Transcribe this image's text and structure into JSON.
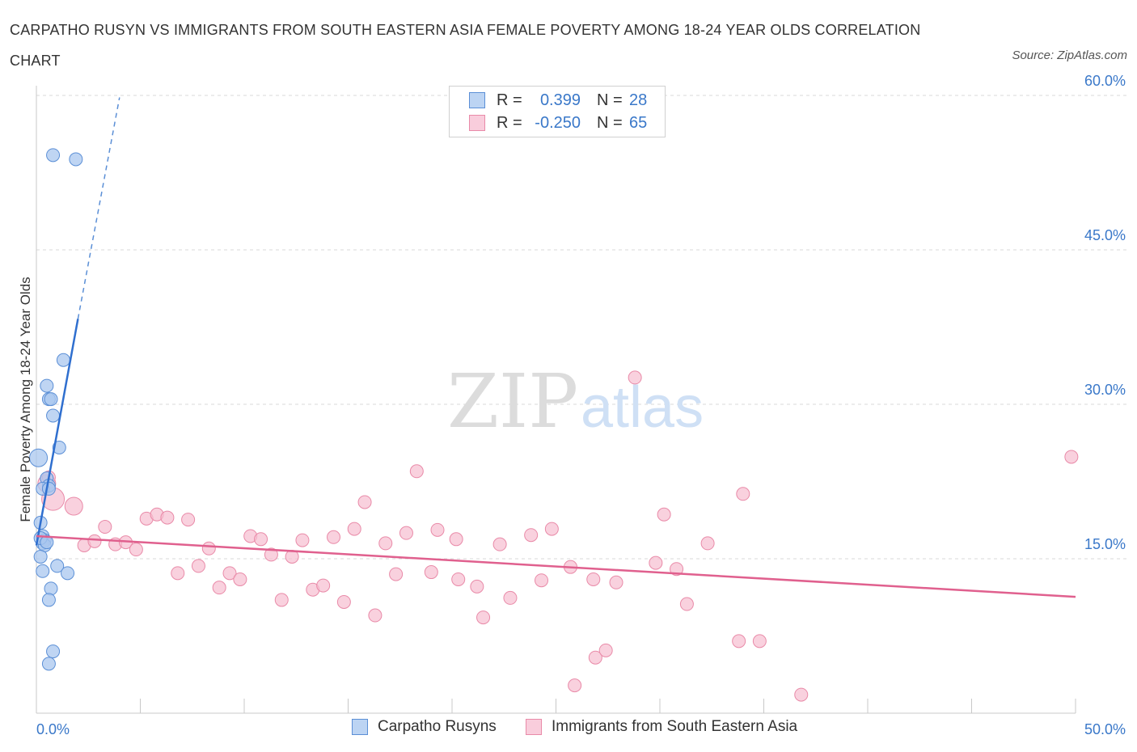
{
  "header": {
    "title": "CARPATHO RUSYN VS IMMIGRANTS FROM SOUTH EASTERN ASIA FEMALE POVERTY AMONG 18-24 YEAR OLDS CORRELATION CHART",
    "source": "Source: ZipAtlas.com"
  },
  "watermark": {
    "zip": "ZIP",
    "atlas": "atlas"
  },
  "legend": {
    "rows": [
      {
        "r_label": "R =",
        "r_value": "0.399",
        "n_label": "N =",
        "n_value": "28"
      },
      {
        "r_label": "R =",
        "r_value": "-0.250",
        "n_label": "N =",
        "n_value": "65"
      }
    ]
  },
  "bottom_legend": {
    "series1": "Carpatho Rusyns",
    "series2": "Immigrants from South Eastern Asia"
  },
  "colors": {
    "blue_fill": "#a9c7ef",
    "blue_stroke": "#5b8fd6",
    "blue_line": "#2f6fcf",
    "pink_fill": "#f6bdd0",
    "pink_stroke": "#e98aa8",
    "pink_line": "#e0608e",
    "axis_text": "#3a78c9",
    "grid": "#d9d9d9"
  },
  "chart_data": {
    "type": "scatter",
    "title": "CARPATHO RUSYN VS IMMIGRANTS FROM SOUTH EASTERN ASIA FEMALE POVERTY AMONG 18-24 YEAR OLDS CORRELATION CHART",
    "xlabel": "",
    "ylabel": "Female Poverty Among 18-24 Year Olds",
    "xlim": [
      0,
      50
    ],
    "ylim": [
      0,
      60
    ],
    "x_tick_labels": [
      "0.0%",
      "50.0%"
    ],
    "y_ticks": [
      15,
      30,
      45,
      60
    ],
    "y_tick_labels": [
      "15.0%",
      "30.0%",
      "45.0%",
      "60.0%"
    ],
    "grid": true,
    "legend_position": "top-center",
    "series": [
      {
        "name": "Carpatho Rusyns",
        "r": 0.399,
        "n": 28,
        "points": [
          [
            0.8,
            54.2
          ],
          [
            1.9,
            53.8
          ],
          [
            1.3,
            34.3
          ],
          [
            0.5,
            31.8
          ],
          [
            0.6,
            30.5
          ],
          [
            0.7,
            30.5
          ],
          [
            0.8,
            28.9
          ],
          [
            1.1,
            25.8
          ],
          [
            0.1,
            24.8
          ],
          [
            0.5,
            22.8
          ],
          [
            0.6,
            22.1
          ],
          [
            0.3,
            21.8
          ],
          [
            0.6,
            21.8
          ],
          [
            0.2,
            18.5
          ],
          [
            0.3,
            17.2
          ],
          [
            0.4,
            16.8
          ],
          [
            0.3,
            16.5
          ],
          [
            0.4,
            16.3
          ],
          [
            0.2,
            15.2
          ],
          [
            0.3,
            13.8
          ],
          [
            1.0,
            14.3
          ],
          [
            1.5,
            13.6
          ],
          [
            0.7,
            12.1
          ],
          [
            0.6,
            11.0
          ],
          [
            0.8,
            6.0
          ],
          [
            0.6,
            4.8
          ],
          [
            0.2,
            17.0
          ],
          [
            0.5,
            16.6
          ]
        ],
        "trend": {
          "x": [
            0,
            2.0
          ],
          "y": [
            16.3,
            38.3
          ],
          "dashed_to": [
            4.0,
            59.8
          ]
        }
      },
      {
        "name": "Immigrants from South Eastern Asia",
        "r": -0.25,
        "n": 65,
        "points": [
          [
            0.5,
            22.3
          ],
          [
            0.8,
            20.8
          ],
          [
            1.8,
            20.1
          ],
          [
            0.6,
            22.9
          ],
          [
            3.3,
            18.1
          ],
          [
            2.3,
            16.3
          ],
          [
            2.8,
            16.7
          ],
          [
            3.8,
            16.4
          ],
          [
            4.3,
            16.6
          ],
          [
            4.8,
            15.9
          ],
          [
            5.3,
            18.9
          ],
          [
            5.8,
            19.3
          ],
          [
            6.3,
            19.0
          ],
          [
            7.3,
            18.8
          ],
          [
            6.8,
            13.6
          ],
          [
            7.8,
            14.3
          ],
          [
            8.3,
            16.0
          ],
          [
            8.8,
            12.2
          ],
          [
            9.3,
            13.6
          ],
          [
            9.8,
            13.0
          ],
          [
            10.3,
            17.2
          ],
          [
            10.8,
            16.9
          ],
          [
            11.3,
            15.4
          ],
          [
            11.8,
            11.0
          ],
          [
            12.3,
            15.2
          ],
          [
            12.8,
            16.8
          ],
          [
            13.3,
            12.0
          ],
          [
            13.8,
            12.4
          ],
          [
            14.3,
            17.1
          ],
          [
            14.8,
            10.8
          ],
          [
            15.3,
            17.9
          ],
          [
            15.8,
            20.5
          ],
          [
            16.3,
            9.5
          ],
          [
            16.8,
            16.5
          ],
          [
            17.3,
            13.5
          ],
          [
            17.8,
            17.5
          ],
          [
            18.3,
            23.5
          ],
          [
            19.0,
            13.7
          ],
          [
            19.3,
            17.8
          ],
          [
            20.2,
            16.9
          ],
          [
            20.3,
            13.0
          ],
          [
            21.2,
            12.3
          ],
          [
            21.5,
            9.3
          ],
          [
            22.3,
            16.4
          ],
          [
            22.8,
            11.2
          ],
          [
            23.8,
            17.3
          ],
          [
            24.3,
            12.9
          ],
          [
            24.8,
            17.9
          ],
          [
            25.7,
            14.2
          ],
          [
            25.9,
            2.7
          ],
          [
            26.8,
            13.0
          ],
          [
            26.9,
            5.4
          ],
          [
            27.4,
            6.1
          ],
          [
            27.9,
            12.7
          ],
          [
            28.8,
            32.6
          ],
          [
            29.8,
            14.6
          ],
          [
            30.2,
            19.3
          ],
          [
            30.8,
            14.0
          ],
          [
            31.3,
            10.6
          ],
          [
            32.3,
            16.5
          ],
          [
            34.0,
            21.3
          ],
          [
            33.8,
            7.0
          ],
          [
            34.8,
            7.0
          ],
          [
            36.8,
            1.8
          ],
          [
            49.8,
            24.9
          ]
        ],
        "trend": {
          "x": [
            0,
            50
          ],
          "y": [
            17.2,
            11.3
          ]
        }
      }
    ]
  }
}
